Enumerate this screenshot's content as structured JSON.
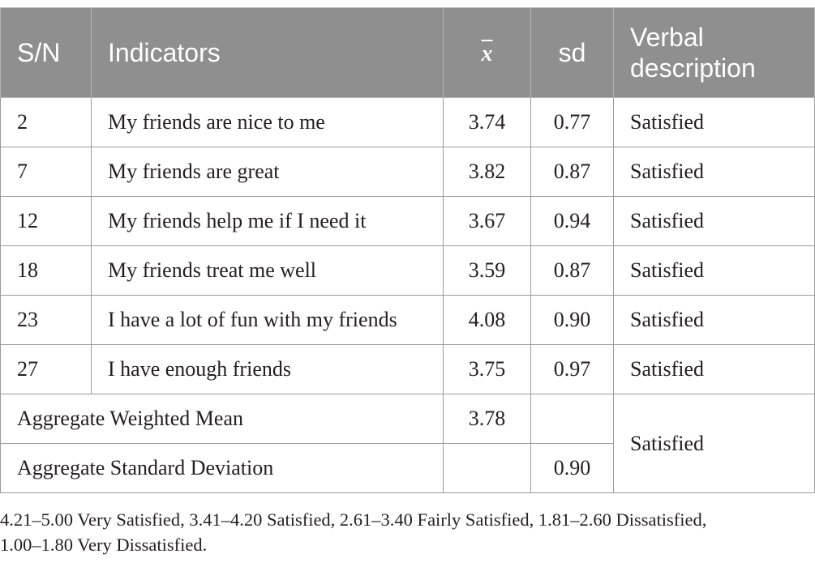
{
  "table": {
    "headers": {
      "sn": "S/N",
      "indicators": "Indicators",
      "mean": "x",
      "sd": "sd",
      "verbal_line1": "Verbal",
      "verbal_line2": "description"
    },
    "rows": [
      {
        "sn": "2",
        "indicator": "My friends are nice to me",
        "mean": "3.74",
        "sd": "0.77",
        "verbal": "Satisfied"
      },
      {
        "sn": "7",
        "indicator": "My friends are great",
        "mean": "3.82",
        "sd": "0.87",
        "verbal": "Satisfied"
      },
      {
        "sn": "12",
        "indicator": "My friends help me if I need it",
        "mean": "3.67",
        "sd": "0.94",
        "verbal": "Satisfied"
      },
      {
        "sn": "18",
        "indicator": "My friends treat me well",
        "mean": "3.59",
        "sd": "0.87",
        "verbal": "Satisfied"
      },
      {
        "sn": "23",
        "indicator": "I have a lot of fun with my friends",
        "mean": "4.08",
        "sd": "0.90",
        "verbal": "Satisfied"
      },
      {
        "sn": "27",
        "indicator": "I have enough friends",
        "mean": "3.75",
        "sd": "0.97",
        "verbal": "Satisfied"
      }
    ],
    "aggregate": {
      "mean_label": "Aggregate Weighted Mean",
      "mean_value": "3.78",
      "sd_label": "Aggregate Standard Deviation",
      "sd_value": "0.90",
      "verbal": "Satisfied"
    }
  },
  "note": {
    "line1": "4.21–5.00 Very Satisfied, 3.41–4.20 Satisfied, 2.61–3.40 Fairly Satisfied, 1.81–2.60 Dissatisfied,",
    "line2": "1.00–1.80 Very Dissatisfied."
  },
  "colors": {
    "header_bg": "#8f8f8f",
    "header_text": "#ffffff",
    "border": "#9a9a9a",
    "text": "#231f20"
  }
}
